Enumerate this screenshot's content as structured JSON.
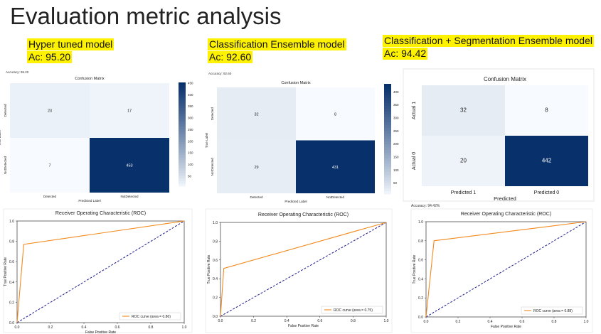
{
  "slide": {
    "title": "Evaluation metric analysis",
    "models": [
      {
        "name": "Hyper tuned model",
        "acc": "Ac: 95.20"
      },
      {
        "name": "Classification Ensemble model",
        "acc": "Ac: 92.60"
      },
      {
        "name": "Classification + Segmentation Ensemble model",
        "acc": "Ac: 94.42"
      }
    ]
  },
  "panels": [
    {
      "accuracy_text": "Accuracy: 95.20",
      "cm": {
        "title": "Confusion Matrix",
        "xlabel": "Predicted Label",
        "ylabel": "True Label",
        "xticks": [
          "Detected",
          "NotDetected"
        ],
        "yticks": [
          "Detected",
          "NotDetected"
        ],
        "cells": [
          [
            23,
            17
          ],
          [
            7,
            453
          ]
        ],
        "colorbar_ticks": [
          50,
          100,
          150,
          200,
          250,
          300,
          350,
          400,
          450
        ]
      },
      "roc": {
        "title": "Receiver Operating Characteristic (ROC)",
        "xlabel": "False Positive Rate",
        "ylabel": "True Positive Rate",
        "legend": "ROC curve (area = 0.86)"
      }
    },
    {
      "accuracy_text": "Accuracy: 92.60",
      "cm": {
        "title": "Confusion Matrix",
        "xlabel": "Predicted Label",
        "ylabel": "True Label",
        "xticks": [
          "Detected",
          "NotDetected"
        ],
        "yticks": [
          "Detected",
          "NotDetected"
        ],
        "cells": [
          [
            32,
            8
          ],
          [
            29,
            431
          ]
        ],
        "colorbar_ticks": [
          50,
          100,
          150,
          200,
          250,
          300,
          350,
          400
        ]
      },
      "roc": {
        "title": "Receiver Operating Characteristic (ROC)",
        "xlabel": "False Positive Rate",
        "ylabel": "True Positive Rate",
        "legend": "ROC curve (area = 0.75)"
      }
    },
    {
      "accuracy_text": "Accuracy: 94.42%",
      "cm": {
        "title": "Confusion Matrix",
        "xlabel": "Predicted",
        "ylabel": "",
        "xticks": [
          "Predicted 1",
          "Predicted 0"
        ],
        "yticks": [
          "Actual 1",
          "Actual 0"
        ],
        "cells": [
          [
            32,
            8
          ],
          [
            20,
            442
          ]
        ],
        "colorbar_ticks": []
      },
      "roc": {
        "title": "Receiver Operating Characteristic (ROC)",
        "xlabel": "False Positive Rate",
        "ylabel": "True Positive Rate",
        "legend": "ROC curve (area = 0.88)"
      }
    }
  ],
  "chart_data": [
    {
      "type": "heatmap",
      "title": "Confusion Matrix",
      "xlabel": "Predicted Label",
      "ylabel": "True Label",
      "x": [
        "Detected",
        "NotDetected"
      ],
      "y": [
        "Detected",
        "NotDetected"
      ],
      "values": [
        [
          23,
          17
        ],
        [
          7,
          453
        ]
      ]
    },
    {
      "type": "line",
      "title": "Receiver Operating Characteristic (ROC)",
      "xlabel": "False Positive Rate",
      "ylabel": "True Positive Rate",
      "xlim": [
        0,
        1
      ],
      "ylim": [
        0,
        1
      ],
      "series": [
        {
          "name": "ROC curve (area = 0.86)",
          "x": [
            0,
            0.04,
            1
          ],
          "y": [
            0,
            0.77,
            1
          ]
        }
      ]
    },
    {
      "type": "heatmap",
      "title": "Confusion Matrix",
      "xlabel": "Predicted Label",
      "ylabel": "True Label",
      "x": [
        "Detected",
        "NotDetected"
      ],
      "y": [
        "Detected",
        "NotDetected"
      ],
      "values": [
        [
          32,
          8
        ],
        [
          29,
          431
        ]
      ]
    },
    {
      "type": "line",
      "title": "Receiver Operating Characteristic (ROC)",
      "xlabel": "False Positive Rate",
      "ylabel": "True Positive Rate",
      "xlim": [
        0,
        1
      ],
      "ylim": [
        0,
        1
      ],
      "series": [
        {
          "name": "ROC curve (area = 0.75)",
          "x": [
            0,
            0.02,
            1
          ],
          "y": [
            0,
            0.51,
            1
          ]
        }
      ]
    },
    {
      "type": "heatmap",
      "title": "Confusion Matrix",
      "xlabel": "Predicted",
      "ylabel": "",
      "x": [
        "Predicted 1",
        "Predicted 0"
      ],
      "y": [
        "Actual 1",
        "Actual 0"
      ],
      "values": [
        [
          32,
          8
        ],
        [
          20,
          442
        ]
      ]
    },
    {
      "type": "line",
      "title": "Receiver Operating Characteristic (ROC)",
      "xlabel": "False Positive Rate",
      "ylabel": "True Positive Rate",
      "xlim": [
        0,
        1
      ],
      "ylim": [
        0,
        1
      ],
      "series": [
        {
          "name": "ROC curve (area = 0.88)",
          "x": [
            0,
            0.05,
            1
          ],
          "y": [
            0,
            0.8,
            1
          ]
        }
      ]
    }
  ]
}
